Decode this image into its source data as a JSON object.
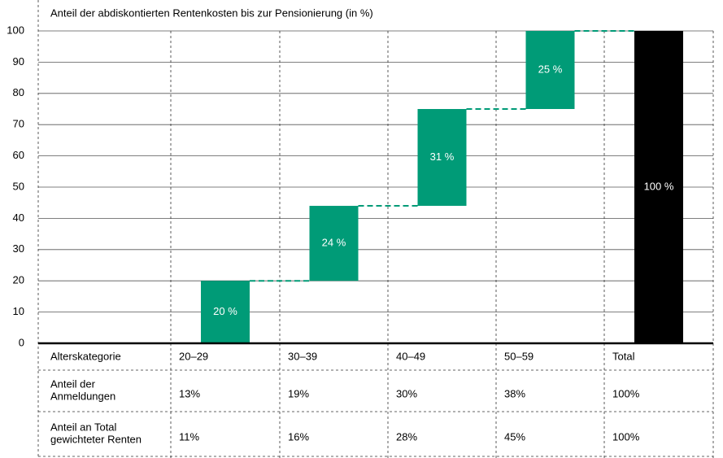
{
  "chart_data": {
    "type": "waterfall",
    "title": "Anteil der abdiskontierten Rentenkosten bis zur Pensionierung (in %)",
    "x_label": "Alterskategorie",
    "categories": [
      "20–29",
      "30–39",
      "40–49",
      "50–59",
      "Total"
    ],
    "values": [
      20,
      24,
      31,
      25,
      100
    ],
    "value_labels": [
      "20 %",
      "24 %",
      "31 %",
      "25 %",
      "100 %"
    ],
    "is_total": [
      false,
      false,
      false,
      false,
      true
    ],
    "colors": [
      "#009b77",
      "#009b77",
      "#009b77",
      "#009b77",
      "#000000"
    ],
    "ylim": [
      0,
      100
    ],
    "yticks": [
      0,
      10,
      20,
      30,
      40,
      50,
      60,
      70,
      80,
      90,
      100
    ],
    "grid": true
  },
  "table": {
    "rows": [
      {
        "label": [
          "Anteil der",
          "Anmeldungen"
        ],
        "values": [
          "13%",
          "19%",
          "30%",
          "38%",
          "100%"
        ]
      },
      {
        "label": [
          "Anteil an Total",
          "gewichteter Renten"
        ],
        "values": [
          "11%",
          "16%",
          "28%",
          "45%",
          "100%"
        ]
      }
    ]
  }
}
